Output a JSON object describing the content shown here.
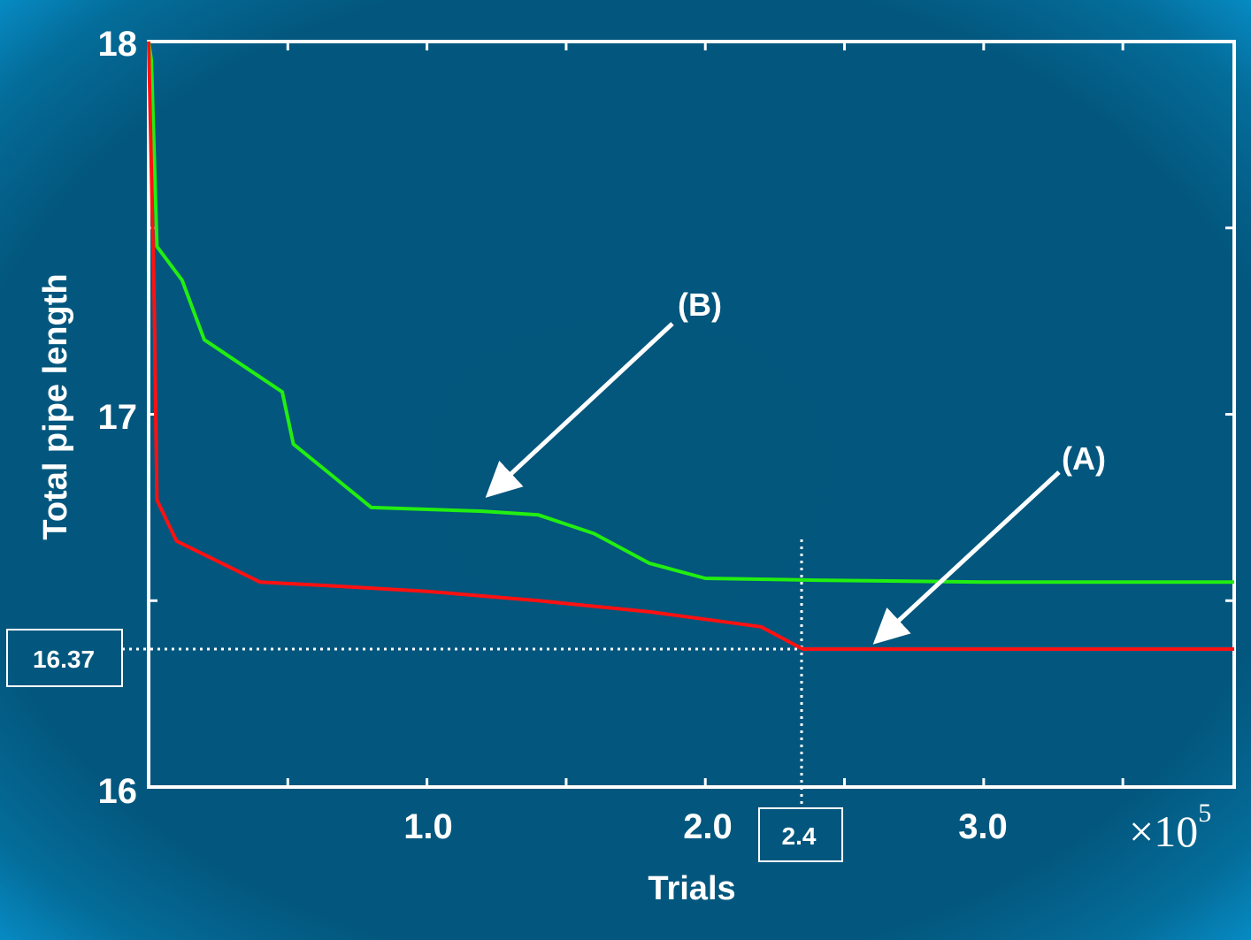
{
  "chart_data": {
    "type": "line",
    "xlabel": "Trials",
    "ylabel": "Total pipe length",
    "x_multiplier_label": "×10",
    "x_multiplier_exponent": "5",
    "xlim": [
      0,
      3.9
    ],
    "ylim": [
      16,
      18
    ],
    "x_ticks": [
      0.5,
      1.0,
      1.5,
      2.0,
      2.5,
      3.0,
      3.5
    ],
    "x_tick_labels": [
      {
        "value": 1.0,
        "label": "1.0"
      },
      {
        "value": 2.0,
        "label": "2.0"
      },
      {
        "value": 3.0,
        "label": "3.0"
      }
    ],
    "y_ticks": [
      16,
      16.5,
      17,
      17.5,
      18
    ],
    "y_tick_labels": [
      {
        "value": 16,
        "label": "16"
      },
      {
        "value": 17,
        "label": "17"
      },
      {
        "value": 18,
        "label": "18"
      }
    ],
    "grid": false,
    "series": [
      {
        "name": "(A)",
        "color": "#ff1111",
        "x": [
          0.0,
          0.02,
          0.03,
          0.1,
          0.4,
          0.65,
          1.0,
          1.4,
          1.8,
          2.0,
          2.2,
          2.35,
          2.4,
          3.0,
          3.9
        ],
        "y": [
          18.0,
          17.3,
          16.77,
          16.66,
          16.55,
          16.54,
          16.525,
          16.5,
          16.47,
          16.45,
          16.43,
          16.37,
          16.37,
          16.37,
          16.37
        ]
      },
      {
        "name": "(B)",
        "color": "#22ee11",
        "x": [
          0.0,
          0.01,
          0.03,
          0.12,
          0.2,
          0.48,
          0.52,
          0.8,
          1.2,
          1.4,
          1.6,
          1.8,
          2.0,
          2.4,
          3.0,
          3.9
        ],
        "y": [
          18.0,
          17.95,
          17.45,
          17.36,
          17.2,
          17.06,
          16.92,
          16.75,
          16.74,
          16.73,
          16.68,
          16.6,
          16.56,
          16.555,
          16.55,
          16.55
        ]
      }
    ],
    "annotations": [
      {
        "type": "arrow-label",
        "text": "(B)",
        "series": "(B)",
        "points_to": {
          "x": 1.22,
          "y": 16.75
        }
      },
      {
        "type": "arrow-label",
        "text": "(A)",
        "series": "(A)",
        "points_to": {
          "x": 2.6,
          "y": 16.37
        }
      },
      {
        "type": "hline-dotted",
        "value": 16.37,
        "label": "16.37"
      },
      {
        "type": "vline-dotted",
        "value": 2.35,
        "label": "2.4"
      }
    ]
  }
}
